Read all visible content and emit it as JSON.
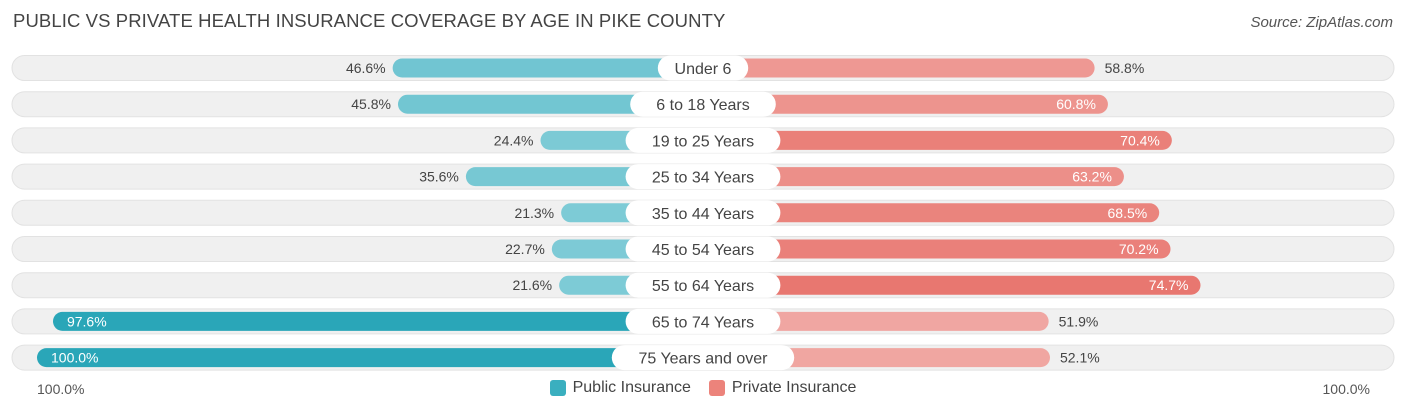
{
  "title": "PUBLIC VS PRIVATE HEALTH INSURANCE COVERAGE BY AGE IN PIKE COUNTY",
  "source": "Source: ZipAtlas.com",
  "axis": {
    "left_label": "100.0%",
    "right_label": "100.0%"
  },
  "colors": {
    "public_light": "#7ecbd6",
    "public_dark": "#2aa6b8",
    "private_light": "#f1aaa6",
    "private_dark": "#e8766f",
    "track": "#f0f0f0"
  },
  "legend": [
    {
      "name": "Public Insurance",
      "color": "#3aafbf"
    },
    {
      "name": "Private Insurance",
      "color": "#ec837b"
    }
  ],
  "chart_data": {
    "type": "bar",
    "orientation": "diverging-horizontal",
    "categories": [
      "Under 6",
      "6 to 18 Years",
      "19 to 25 Years",
      "25 to 34 Years",
      "35 to 44 Years",
      "45 to 54 Years",
      "55 to 64 Years",
      "65 to 74 Years",
      "75 Years and over"
    ],
    "series": [
      {
        "name": "Public Insurance",
        "values": [
          46.6,
          45.8,
          24.4,
          35.6,
          21.3,
          22.7,
          21.6,
          97.6,
          100.0
        ],
        "labels": [
          "46.6%",
          "45.8%",
          "24.4%",
          "35.6%",
          "21.3%",
          "22.7%",
          "21.6%",
          "97.6%",
          "100.0%"
        ]
      },
      {
        "name": "Private Insurance",
        "values": [
          58.8,
          60.8,
          70.4,
          63.2,
          68.5,
          70.2,
          74.7,
          51.9,
          52.1
        ],
        "labels": [
          "58.8%",
          "60.8%",
          "70.4%",
          "63.2%",
          "68.5%",
          "70.2%",
          "74.7%",
          "51.9%",
          "52.1%"
        ]
      }
    ],
    "xlim": [
      0,
      100
    ],
    "grid": false,
    "legend_position": "bottom-center"
  }
}
